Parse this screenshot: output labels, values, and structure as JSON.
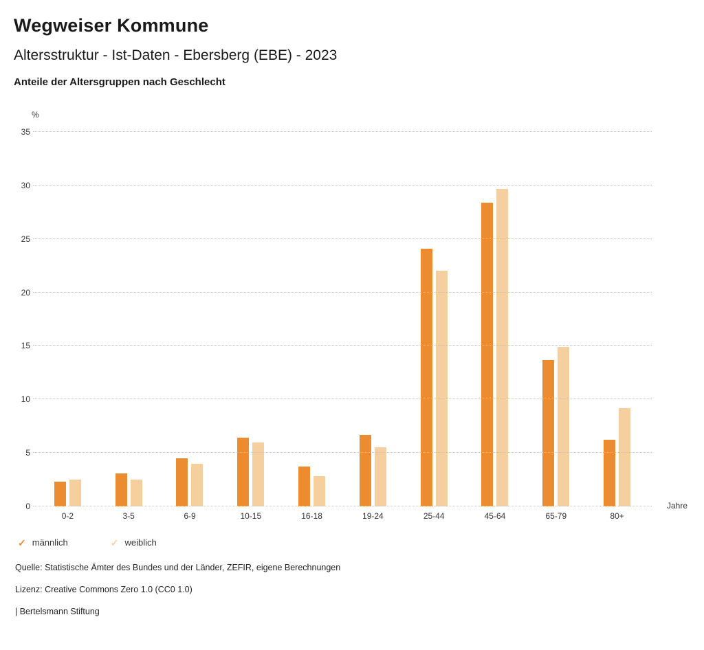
{
  "header": {
    "title": "Wegweiser Kommune",
    "subtitle": "Altersstruktur - Ist-Daten - Ebersberg (EBE) - 2023",
    "caption": "Anteile der Altersgruppen nach Geschlecht"
  },
  "chart_data": {
    "type": "bar",
    "title": "Anteile der Altersgruppen nach Geschlecht",
    "unit_label": "%",
    "x_unit_label": "Jahre",
    "categories": [
      "0-2",
      "3-5",
      "6-9",
      "10-15",
      "16-18",
      "19-24",
      "25-44",
      "45-64",
      "65-79",
      "80+"
    ],
    "series": [
      {
        "name": "männlich",
        "color": "#EC8C31",
        "values": [
          2.3,
          3.1,
          4.5,
          6.4,
          3.7,
          6.7,
          24.1,
          28.4,
          13.7,
          6.2
        ]
      },
      {
        "name": "weiblich",
        "color": "#F6CF9E",
        "values": [
          2.5,
          2.5,
          4.0,
          6.0,
          2.8,
          5.5,
          22.0,
          29.7,
          14.9,
          9.2
        ]
      }
    ],
    "ylim": [
      0,
      35
    ],
    "yticks": [
      0,
      5,
      10,
      15,
      20,
      25,
      30,
      35
    ],
    "grid": true,
    "legend_position": "bottom"
  },
  "footer": {
    "source": "Quelle: Statistische Ämter des Bundes und der Länder, ZEFIR, eigene Berechnungen",
    "license": "Lizenz: Creative Commons Zero 1.0 (CC0 1.0)",
    "attribution": "| Bertelsmann Stiftung"
  }
}
